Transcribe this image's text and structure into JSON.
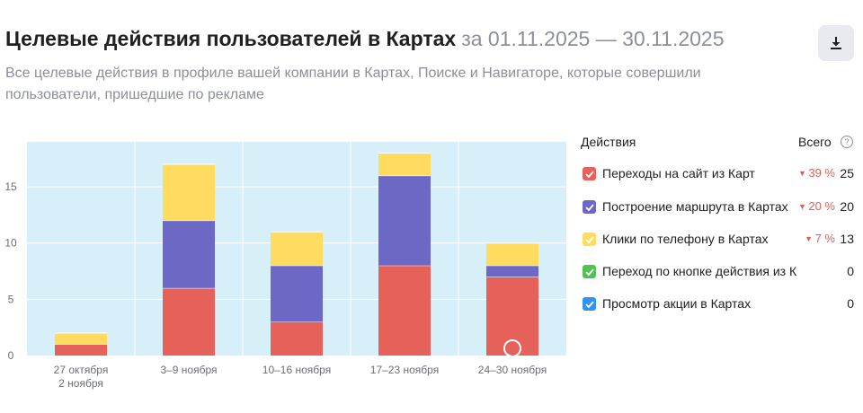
{
  "header": {
    "title": "Целевые действия пользователей в Картах",
    "period": "за 01.11.2025 — 30.11.2025",
    "subtitle": "Все целевые действия в профиле вашей компании в Картах, Поиске и Навигаторе, которые совершили пользователи, пришедшие по рекламе"
  },
  "download": {
    "icon": "download-icon"
  },
  "legend": {
    "header_label": "Действия",
    "total_label": "Всего",
    "help_icon": "?",
    "items": [
      {
        "label": "Переходы на сайт из Карт",
        "color": "#e5615a",
        "delta": "39 %",
        "total": "25"
      },
      {
        "label": "Построение маршрута в Картах",
        "color": "#6c68c6",
        "delta": "20 %",
        "total": "20"
      },
      {
        "label": "Клики по телефону в Картах",
        "color": "#ffdb60",
        "delta": "7 %",
        "total": "13"
      },
      {
        "label": "Переход по кнопке действия из Карт",
        "color": "#53c255",
        "delta": "",
        "total": "0"
      },
      {
        "label": "Просмотр акции в Картах",
        "color": "#2f93f3",
        "delta": "",
        "total": "0"
      }
    ]
  },
  "chart_data": {
    "type": "bar",
    "stacked": true,
    "categories": [
      [
        "27 октября",
        "2 ноября"
      ],
      [
        "3–9 ноября"
      ],
      [
        "10–16 ноября"
      ],
      [
        "17–23 ноября"
      ],
      [
        "24–30 ноября"
      ]
    ],
    "series": [
      {
        "name": "Переходы на сайт из Карт",
        "color": "#e5615a",
        "values": [
          1,
          6,
          3,
          8,
          7
        ]
      },
      {
        "name": "Построение маршрута в Картах",
        "color": "#6c68c6",
        "values": [
          0,
          6,
          5,
          8,
          1
        ]
      },
      {
        "name": "Клики по телефону в Картах",
        "color": "#ffdb60",
        "values": [
          1,
          5,
          3,
          2,
          2
        ]
      },
      {
        "name": "Переход по кнопке действия из Карт",
        "color": "#53c255",
        "values": [
          0,
          0,
          0,
          0,
          0
        ]
      },
      {
        "name": "Просмотр акции в Картах",
        "color": "#2f93f3",
        "values": [
          0,
          0,
          0,
          0,
          0
        ]
      }
    ],
    "yticks": [
      0,
      5,
      10,
      15
    ],
    "ylim": [
      0,
      19
    ],
    "grid": true,
    "background": "#d6eff9",
    "marker": {
      "category_index": 4,
      "color": "#e5615a"
    }
  }
}
